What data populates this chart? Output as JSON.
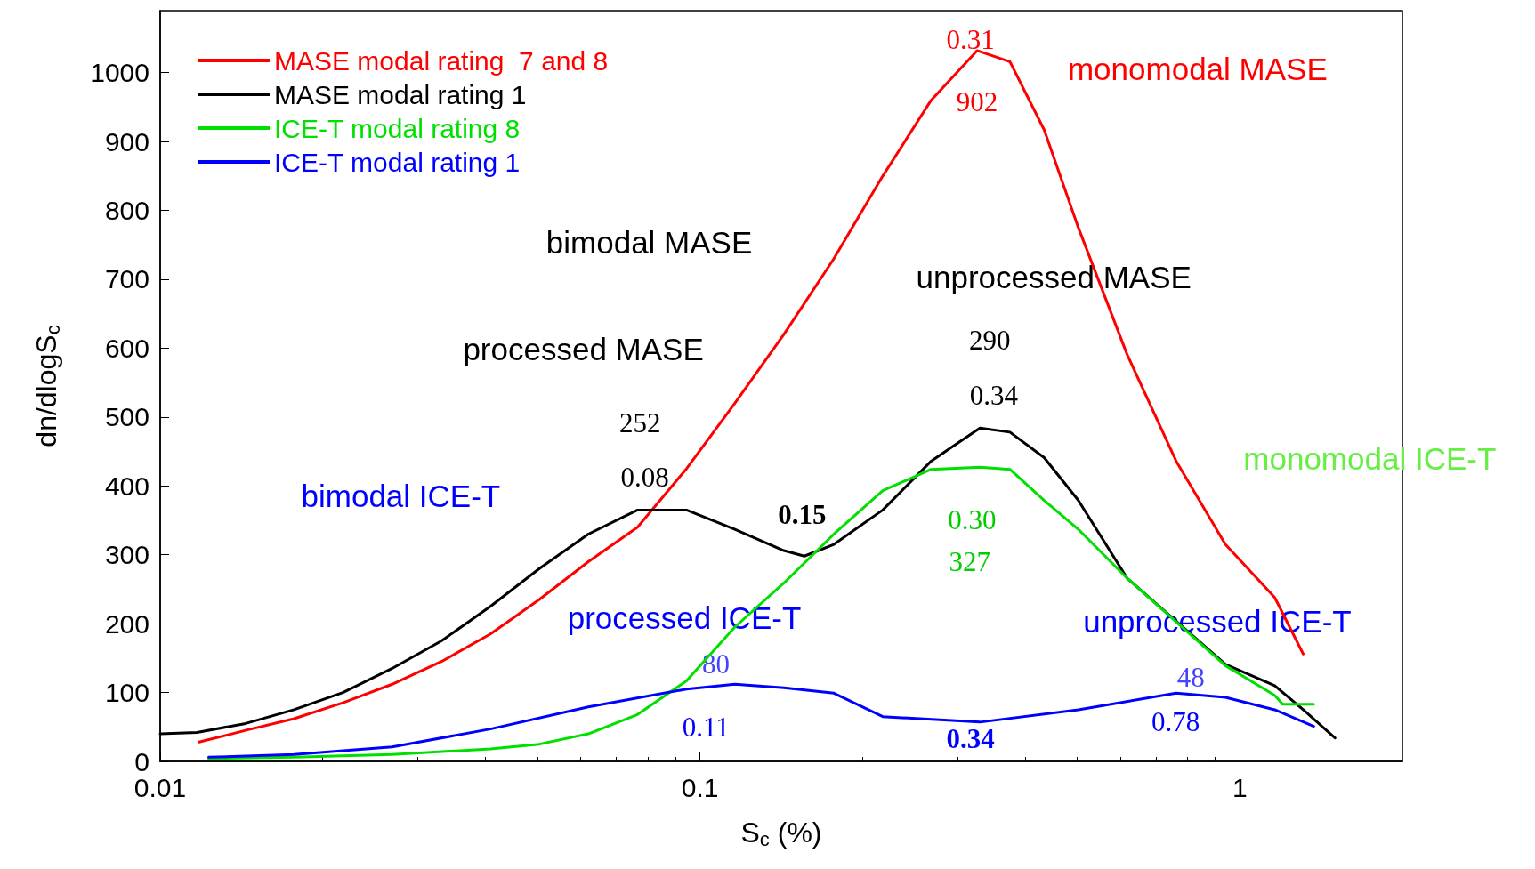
{
  "chart_data": {
    "type": "line",
    "xlabel": "S$_{c}$ (%)",
    "ylabel": "dn/dlogS$_{c}$",
    "log": "x",
    "xlim": [
      0.01,
      2
    ],
    "xticks": [
      0.01,
      0.1,
      1
    ],
    "ylim": [
      0,
      1090
    ],
    "yticks": [
      0,
      100,
      200,
      300,
      400,
      500,
      600,
      700,
      800,
      900,
      1000
    ],
    "grid": false,
    "legend": "top left",
    "marker": "none",
    "line_style": "solid",
    "series": [
      {
        "name": "MASE modal rating  7 and 8",
        "color": "#ff0000",
        "x": [
          0.0118,
          0.0144,
          0.0177,
          0.0218,
          0.0269,
          0.0332,
          0.0409,
          0.0504,
          0.0621,
          0.0766,
          0.0944,
          0.116,
          0.143,
          0.177,
          0.218,
          0.268,
          0.326,
          0.375,
          0.434,
          0.502,
          0.618,
          0.762,
          0.94,
          1.16,
          1.31
        ],
        "values": [
          28,
          45,
          62,
          85,
          112,
          145,
          185,
          235,
          290,
          340,
          425,
          520,
          620,
          730,
          850,
          960,
          1032,
          1016,
          917,
          775,
          591,
          436,
          315,
          238,
          156
        ]
      },
      {
        "name": "MASE modal rating 1",
        "color": "#000000",
        "x": [
          0.01,
          0.0117,
          0.0144,
          0.0177,
          0.0218,
          0.0269,
          0.0332,
          0.0409,
          0.0504,
          0.0621,
          0.0766,
          0.0944,
          0.116,
          0.143,
          0.156,
          0.177,
          0.218,
          0.268,
          0.33,
          0.375,
          0.434,
          0.502,
          0.618,
          0.94,
          1.16,
          1.31,
          1.5
        ],
        "values": [
          40,
          42,
          55,
          75,
          100,
          135,
          175,
          225,
          280,
          330,
          365,
          365,
          337,
          306,
          298,
          315,
          365,
          436,
          484,
          478,
          441,
          379,
          266,
          141,
          110,
          75,
          34
        ]
      },
      {
        "name": "ICE-T modal rating 8",
        "color": "#00e000",
        "x": [
          0.0123,
          0.0177,
          0.0269,
          0.0409,
          0.0504,
          0.0621,
          0.0766,
          0.0944,
          0.116,
          0.143,
          0.177,
          0.218,
          0.268,
          0.33,
          0.375,
          0.434,
          0.502,
          0.618,
          0.94,
          1.16,
          1.2,
          1.37
        ],
        "values": [
          4,
          6,
          10,
          18,
          25,
          40,
          68,
          117,
          195,
          259,
          330,
          393,
          424,
          427,
          424,
          379,
          337,
          266,
          139,
          96,
          83,
          83
        ]
      },
      {
        "name": "ICE-T modal rating 1",
        "color": "#0000ff",
        "x": [
          0.0123,
          0.0177,
          0.0269,
          0.0409,
          0.0621,
          0.0944,
          0.116,
          0.143,
          0.177,
          0.218,
          0.33,
          0.502,
          0.762,
          0.94,
          1.16,
          1.37
        ],
        "values": [
          6,
          10,
          21,
          47,
          79,
          105,
          112,
          107,
          99,
          65,
          57,
          75,
          99,
          93,
          75,
          51
        ]
      }
    ],
    "annotations": [
      "0.31",
      "902",
      "monomodal MASE",
      "bimodal MASE",
      "unprocessed MASE",
      "processed MASE",
      "290",
      "0.34",
      "252",
      "0.08",
      "0.15",
      "bimodal ICE-T",
      "monomodal ICE-T",
      "0.30",
      "327",
      "processed ICE-T",
      "unprocessed ICE-T",
      "80",
      "0.11",
      "0.34",
      "48",
      "0.78"
    ]
  }
}
